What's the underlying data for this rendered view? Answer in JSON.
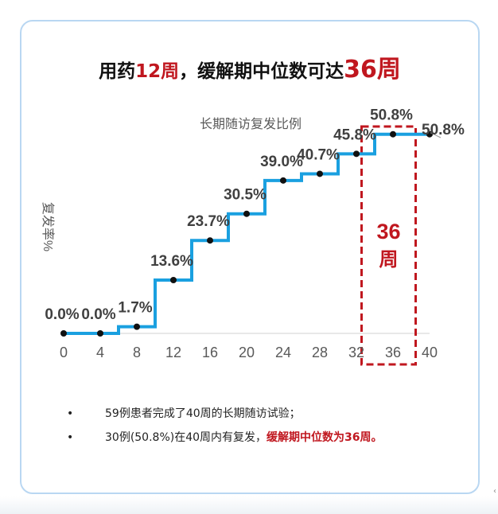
{
  "title": {
    "part1": "用药",
    "highlight1": "12周",
    "part2": "，缓解期中位数可达",
    "highlight2": "36周"
  },
  "chart_data": {
    "type": "line",
    "step": true,
    "title": "长期随访复发比例",
    "ylabel": "复发率%",
    "xlabel": "",
    "x": [
      0,
      4,
      8,
      12,
      16,
      20,
      24,
      28,
      32,
      36,
      40
    ],
    "xticks": [
      "0",
      "4",
      "8",
      "12",
      "16",
      "20",
      "24",
      "28",
      "32",
      "36",
      "40"
    ],
    "xlim": [
      0,
      40
    ],
    "ylim": [
      0,
      55
    ],
    "series_color": "#1aa0e0",
    "points": [
      {
        "x": 0,
        "y": 0.0,
        "label": "0.0%"
      },
      {
        "x": 4,
        "y": 0.0,
        "label": "0.0%"
      },
      {
        "x": 8,
        "y": 1.7,
        "label": "1.7%"
      },
      {
        "x": 12,
        "y": 13.6,
        "label": "13.6%"
      },
      {
        "x": 16,
        "y": 23.7,
        "label": "23.7%"
      },
      {
        "x": 20,
        "y": 30.5,
        "label": "30.5%"
      },
      {
        "x": 24,
        "y": 39.0,
        "label": "39.0%"
      },
      {
        "x": 28,
        "y": 40.7,
        "label": "40.7%"
      },
      {
        "x": 32,
        "y": 45.8,
        "label": "45.8%"
      },
      {
        "x": 36,
        "y": 50.8,
        "label": "50.8%"
      },
      {
        "x": 40,
        "y": 50.8,
        "label": "50.8%"
      }
    ],
    "step_changes_at": [
      6,
      10,
      14,
      18,
      22,
      26,
      30,
      34
    ],
    "highlight_box": {
      "x_from": 33,
      "x_to": 39,
      "label_line1": "36",
      "label_line2": "周",
      "color": "#c0171f"
    },
    "grid": false,
    "legend": "none"
  },
  "bullets": [
    {
      "marker": "•",
      "text": "59例患者完成了40周的长期随访试验；",
      "emphasis": ""
    },
    {
      "marker": "•",
      "text": "30例(50.8%)在40周内有复发，",
      "emphasis": "缓解期中位数为36周。"
    }
  ],
  "edge_mark": "‹"
}
